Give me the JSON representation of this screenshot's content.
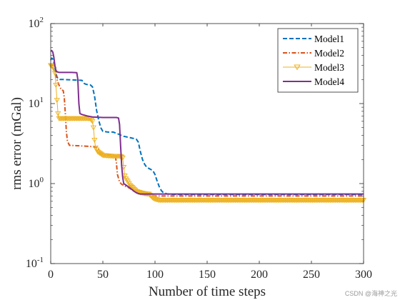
{
  "chart_data": {
    "type": "line",
    "title": "",
    "xlabel": "Number of time steps",
    "ylabel": "rms error (mGal)",
    "xlim": [
      0,
      300
    ],
    "ylim": [
      0.1,
      100
    ],
    "yscale": "log",
    "x_ticks": [
      0,
      50,
      100,
      150,
      200,
      250,
      300
    ],
    "y_ticks": [
      {
        "value": 0.1,
        "base": "10",
        "exp": "-1"
      },
      {
        "value": 1,
        "base": "10",
        "exp": "0"
      },
      {
        "value": 10,
        "base": "10",
        "exp": "1"
      },
      {
        "value": 100,
        "base": "10",
        "exp": "2"
      }
    ],
    "grid": false,
    "legend_position": "top-right",
    "series": [
      {
        "name": "Model1",
        "color": "#0072BD",
        "dash": "dashed",
        "marker": "none",
        "x": [
          0,
          1,
          2,
          3,
          4,
          5,
          6,
          7,
          9,
          12,
          20,
          30,
          31,
          32,
          33,
          34,
          36,
          38,
          40,
          42,
          44,
          46,
          48,
          50,
          55,
          60,
          62,
          64,
          66,
          68,
          70,
          72,
          74,
          78,
          82,
          84,
          86,
          88,
          90,
          92,
          94,
          96,
          98,
          100,
          102,
          104,
          106,
          108,
          112,
          120,
          150,
          200,
          250,
          300
        ],
        "y": [
          35,
          37,
          36,
          33,
          28,
          24,
          21.5,
          20.5,
          20,
          20,
          19.8,
          19.5,
          18.6,
          17.9,
          17.6,
          17.4,
          17.2,
          17.1,
          16.2,
          12.5,
          8.2,
          6.2,
          5.0,
          4.5,
          4.4,
          4.4,
          4.3,
          4.2,
          4.1,
          4.0,
          3.9,
          3.85,
          3.8,
          3.7,
          3.6,
          3.3,
          2.5,
          2.0,
          1.75,
          1.6,
          1.55,
          1.5,
          1.45,
          1.3,
          1.08,
          0.92,
          0.82,
          0.77,
          0.74,
          0.73,
          0.73,
          0.73,
          0.73,
          0.73
        ]
      },
      {
        "name": "Model2",
        "color": "#D95319",
        "dash": "dashdot",
        "marker": "none",
        "x": [
          0,
          2,
          4,
          6,
          8,
          10,
          12,
          13,
          14,
          15,
          16,
          18,
          20,
          30,
          40,
          45,
          48,
          50,
          55,
          60,
          62,
          63,
          64,
          66,
          68,
          70,
          72,
          74,
          76,
          78,
          80,
          82,
          84,
          86,
          88,
          90,
          95,
          100,
          150,
          200,
          250,
          300
        ],
        "y": [
          29,
          28,
          25,
          20,
          17,
          15,
          14.5,
          12,
          7.5,
          4.5,
          3.4,
          3.0,
          3.0,
          2.95,
          2.9,
          2.8,
          2.4,
          2.3,
          2.3,
          2.3,
          2.2,
          1.8,
          1.3,
          1.05,
          0.98,
          0.95,
          0.92,
          0.9,
          0.87,
          0.83,
          0.8,
          0.78,
          0.76,
          0.74,
          0.73,
          0.72,
          0.71,
          0.7,
          0.7,
          0.7,
          0.7,
          0.7
        ]
      },
      {
        "name": "Model3",
        "color": "#EDB120",
        "dash": "solid",
        "marker": "triangle-down",
        "x": [
          0,
          1,
          2,
          3,
          4,
          5,
          6,
          7,
          8,
          10,
          20,
          30,
          35,
          38,
          40,
          41,
          42,
          43,
          45,
          50,
          60,
          62,
          64,
          66,
          68,
          69,
          70,
          71,
          72,
          73,
          74,
          75,
          76,
          78,
          80,
          82,
          86,
          90,
          94,
          96,
          98,
          100,
          104,
          110,
          150,
          200,
          250,
          300
        ],
        "y": [
          30,
          29.5,
          29,
          27,
          24,
          17,
          11,
          7.5,
          6.5,
          6.5,
          6.5,
          6.5,
          6.5,
          6.45,
          6.0,
          5.0,
          3.5,
          2.8,
          2.5,
          2.25,
          2.2,
          2.2,
          2.2,
          2.2,
          2.15,
          2.1,
          1.6,
          1.25,
          1.15,
          1.1,
          1.05,
          1.0,
          0.95,
          0.9,
          0.85,
          0.8,
          0.77,
          0.75,
          0.74,
          0.7,
          0.66,
          0.64,
          0.62,
          0.62,
          0.62,
          0.62,
          0.62,
          0.62
        ]
      },
      {
        "name": "Model4",
        "color": "#7E2F8E",
        "dash": "solid",
        "marker": "none",
        "x": [
          0,
          1,
          2,
          3,
          4,
          5,
          6,
          8,
          10,
          20,
          25,
          26,
          27,
          28,
          30,
          35,
          40,
          50,
          60,
          63,
          65,
          66,
          67,
          68,
          69,
          70,
          72,
          74,
          76,
          78,
          80,
          82,
          84,
          86,
          90,
          100,
          150,
          200,
          250,
          300
        ],
        "y": [
          45,
          46,
          44,
          38,
          30,
          26,
          25,
          24.5,
          24.5,
          24.5,
          24.3,
          20,
          10,
          7.5,
          7.3,
          7.0,
          6.8,
          6.7,
          6.7,
          6.7,
          6.6,
          5.5,
          3.0,
          1.7,
          1.2,
          1.0,
          0.96,
          0.92,
          0.88,
          0.84,
          0.8,
          0.77,
          0.75,
          0.74,
          0.74,
          0.74,
          0.74,
          0.74,
          0.74,
          0.74
        ]
      }
    ]
  },
  "watermark": "CSDN @海神之光"
}
